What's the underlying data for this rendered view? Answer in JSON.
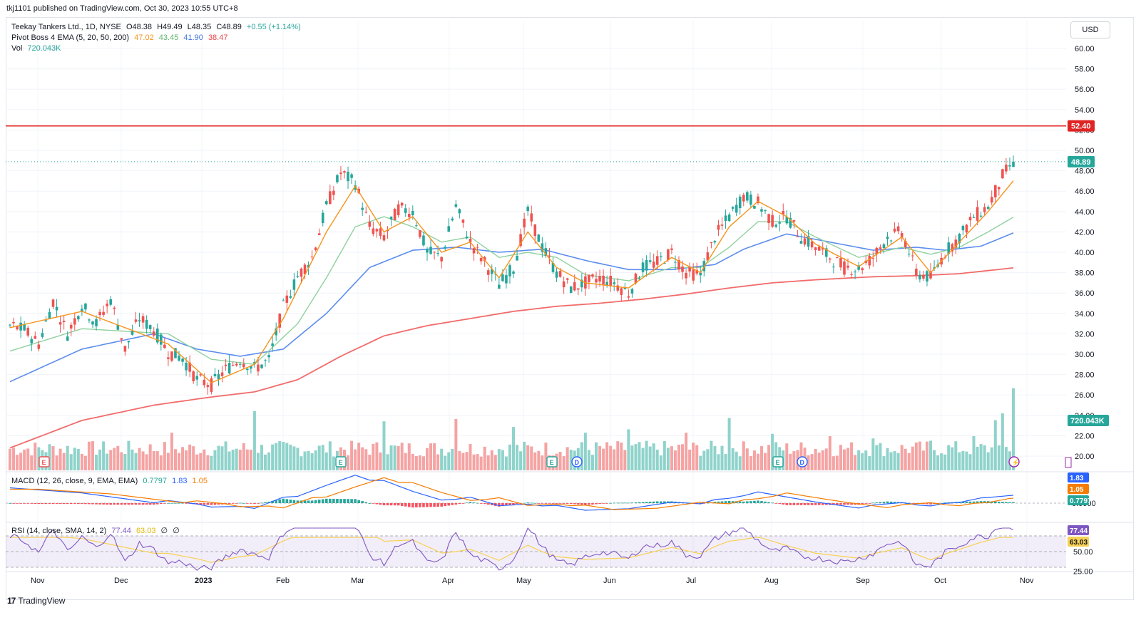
{
  "header": {
    "published": "tkj1101 published on TradingView.com, Oct 30, 2023 10:55 UTC+8"
  },
  "legend": {
    "symbol": "Teekay Tankers Ltd., 1D, NYSE",
    "open": "O48.38",
    "high": "H49.49",
    "low": "L48.35",
    "close": "C48.89",
    "change": "+0.55 (+1.14%)",
    "ema_label": "Pivot Boss 4 EMA (5, 20, 50, 200)",
    "ema5": "47.02",
    "ema20": "43.45",
    "ema50": "41.90",
    "ema200": "38.47",
    "vol_label": "Vol",
    "vol_value": "720.043K",
    "macd_label": "MACD (12, 26, close, 9, EMA, EMA)",
    "macd_hist": "0.7797",
    "macd_line": "1.83",
    "macd_signal": "1.05",
    "rsi_label": "RSI (14, close, SMA, 14, 2)",
    "rsi_value": "77.44",
    "rsi_ma": "63.03",
    "rsi_extra1": "∅",
    "rsi_extra2": "∅"
  },
  "toolbar": {
    "currency": "USD"
  },
  "footer": {
    "brand": "TradingView",
    "mark": "17"
  },
  "colors": {
    "up": "#26a69a",
    "down": "#ef5350",
    "up_vol": "#8fd3cb",
    "down_vol": "#f5a3a3",
    "ema5": "#f7931a",
    "ema20": "#8fd19e",
    "ema50": "#5b8def",
    "ema200": "#f26b6b",
    "resistance": "#e02424",
    "macd": "#2962ff",
    "signal": "#f57c00",
    "rsi": "#7e57c2",
    "rsi_ma": "#f7d154"
  },
  "badges": {
    "resistance": "52.40",
    "last_price": "48.89",
    "volume": "720.043K",
    "macd_line": "1.83",
    "macd_signal": "1.05",
    "macd_hist": "0.7797",
    "rsi": "77.44",
    "rsi_ma": "63.03"
  },
  "event_markers": [
    {
      "letter": "E",
      "kind": "earnings-red"
    },
    {
      "letter": "E",
      "kind": "earnings"
    },
    {
      "letter": "E",
      "kind": "earnings"
    },
    {
      "letter": "D",
      "kind": "dividend"
    },
    {
      "letter": "E",
      "kind": "earnings"
    },
    {
      "letter": "D",
      "kind": "dividend"
    },
    {
      "letter": "⚡",
      "kind": "news"
    }
  ],
  "chart_data": {
    "type": "candlestick",
    "title": "Teekay Tankers Ltd., 1D, NYSE",
    "currency": "USD",
    "price_axis": {
      "ticks": [
        "60.00",
        "58.00",
        "56.00",
        "54.00",
        "52.00",
        "50.00",
        "48.00",
        "46.00",
        "44.00",
        "42.00",
        "40.00",
        "38.00",
        "36.00",
        "34.00",
        "32.00",
        "30.00",
        "28.00",
        "26.00",
        "24.00",
        "22.00",
        "20.00"
      ],
      "range": [
        19,
        61
      ]
    },
    "time_axis": [
      "Nov",
      "Dec",
      "2023",
      "Feb",
      "Mar",
      "Apr",
      "May",
      "Jun",
      "Jul",
      "Aug",
      "Sep",
      "Oct",
      "Nov"
    ],
    "macd_axis": [
      "0.0000"
    ],
    "rsi_axis": [
      "50.00",
      "25.00"
    ],
    "rsi_levels": [
      70,
      50,
      30
    ],
    "resistance_level": 52.4,
    "last_ohlc": {
      "open": 48.38,
      "high": 49.49,
      "low": 48.35,
      "close": 48.89
    },
    "price_path": [
      [
        0,
        32.8
      ],
      [
        4,
        32.4
      ],
      [
        8,
        31.0
      ],
      [
        12,
        35.2
      ],
      [
        16,
        32.0
      ],
      [
        20,
        34.8
      ],
      [
        24,
        33.0
      ],
      [
        28,
        35.4
      ],
      [
        32,
        30.5
      ],
      [
        36,
        33.5
      ],
      [
        40,
        32.4
      ],
      [
        44,
        30.2
      ],
      [
        48,
        29.6
      ],
      [
        52,
        27.5
      ],
      [
        56,
        27.0
      ],
      [
        60,
        28.5
      ],
      [
        64,
        29.5
      ],
      [
        68,
        28.6
      ],
      [
        72,
        29.4
      ],
      [
        76,
        34.6
      ],
      [
        80,
        37.6
      ],
      [
        84,
        39.5
      ],
      [
        88,
        44.5
      ],
      [
        92,
        47.8
      ],
      [
        96,
        46.8
      ],
      [
        100,
        42.5
      ],
      [
        104,
        41.5
      ],
      [
        108,
        44.3
      ],
      [
        112,
        44.0
      ],
      [
        116,
        40.0
      ],
      [
        120,
        39.5
      ],
      [
        124,
        44.5
      ],
      [
        128,
        41.0
      ],
      [
        132,
        39.0
      ],
      [
        136,
        36.8
      ],
      [
        140,
        38.5
      ],
      [
        144,
        44.0
      ],
      [
        148,
        40.5
      ],
      [
        152,
        38.0
      ],
      [
        156,
        36.5
      ],
      [
        160,
        37.0
      ],
      [
        164,
        37.5
      ],
      [
        168,
        37.0
      ],
      [
        172,
        36.0
      ],
      [
        176,
        38.5
      ],
      [
        180,
        39.0
      ],
      [
        184,
        40.0
      ],
      [
        188,
        38.0
      ],
      [
        192,
        37.8
      ],
      [
        196,
        41.5
      ],
      [
        200,
        43.5
      ],
      [
        204,
        45.5
      ],
      [
        208,
        44.8
      ],
      [
        212,
        43.0
      ],
      [
        216,
        43.5
      ],
      [
        220,
        41.5
      ],
      [
        224,
        40.5
      ],
      [
        228,
        39.5
      ],
      [
        232,
        38.5
      ],
      [
        236,
        38.4
      ],
      [
        240,
        39.5
      ],
      [
        244,
        41.5
      ],
      [
        248,
        42.0
      ],
      [
        252,
        38.0
      ],
      [
        256,
        37.5
      ],
      [
        260,
        40.0
      ],
      [
        264,
        41.5
      ],
      [
        268,
        43.5
      ],
      [
        272,
        44.5
      ],
      [
        276,
        47.5
      ],
      [
        279,
        48.89
      ]
    ],
    "ema5_path": [
      [
        0,
        32.6
      ],
      [
        20,
        34.2
      ],
      [
        44,
        31.0
      ],
      [
        56,
        27.2
      ],
      [
        68,
        29.0
      ],
      [
        76,
        33.5
      ],
      [
        88,
        42.0
      ],
      [
        96,
        46.5
      ],
      [
        104,
        42.0
      ],
      [
        112,
        43.5
      ],
      [
        120,
        40.0
      ],
      [
        128,
        41.0
      ],
      [
        136,
        37.5
      ],
      [
        144,
        42.0
      ],
      [
        152,
        38.5
      ],
      [
        160,
        37.0
      ],
      [
        172,
        36.5
      ],
      [
        184,
        39.5
      ],
      [
        192,
        38.0
      ],
      [
        200,
        42.5
      ],
      [
        208,
        45.0
      ],
      [
        216,
        43.5
      ],
      [
        224,
        40.8
      ],
      [
        236,
        38.6
      ],
      [
        248,
        41.5
      ],
      [
        256,
        38.0
      ],
      [
        264,
        41.0
      ],
      [
        272,
        44.0
      ],
      [
        279,
        47.02
      ]
    ],
    "ema20_path": [
      [
        0,
        30.3
      ],
      [
        20,
        32.5
      ],
      [
        44,
        32.0
      ],
      [
        56,
        29.5
      ],
      [
        68,
        29.0
      ],
      [
        80,
        33.0
      ],
      [
        88,
        37.5
      ],
      [
        96,
        42.5
      ],
      [
        104,
        43.5
      ],
      [
        112,
        42.5
      ],
      [
        120,
        41.0
      ],
      [
        128,
        41.5
      ],
      [
        136,
        39.5
      ],
      [
        144,
        40.0
      ],
      [
        152,
        39.5
      ],
      [
        160,
        37.8
      ],
      [
        172,
        37.2
      ],
      [
        184,
        38.5
      ],
      [
        192,
        38.5
      ],
      [
        200,
        40.5
      ],
      [
        208,
        43.0
      ],
      [
        216,
        43.0
      ],
      [
        224,
        41.5
      ],
      [
        236,
        39.5
      ],
      [
        248,
        40.5
      ],
      [
        256,
        39.8
      ],
      [
        264,
        40.5
      ],
      [
        272,
        42.0
      ],
      [
        279,
        43.45
      ]
    ],
    "ema50_path": [
      [
        0,
        27.3
      ],
      [
        20,
        30.5
      ],
      [
        40,
        32.0
      ],
      [
        52,
        30.5
      ],
      [
        64,
        29.8
      ],
      [
        76,
        30.5
      ],
      [
        88,
        34.0
      ],
      [
        100,
        38.5
      ],
      [
        112,
        40.2
      ],
      [
        124,
        40.5
      ],
      [
        136,
        40.0
      ],
      [
        148,
        40.3
      ],
      [
        160,
        39.2
      ],
      [
        172,
        38.3
      ],
      [
        184,
        38.3
      ],
      [
        196,
        38.8
      ],
      [
        204,
        40.3
      ],
      [
        216,
        41.8
      ],
      [
        228,
        41.0
      ],
      [
        240,
        40.2
      ],
      [
        252,
        40.5
      ],
      [
        260,
        40.2
      ],
      [
        270,
        40.6
      ],
      [
        279,
        41.9
      ]
    ],
    "ema200_path": [
      [
        0,
        20.8
      ],
      [
        20,
        23.5
      ],
      [
        40,
        25.0
      ],
      [
        56,
        25.8
      ],
      [
        68,
        26.3
      ],
      [
        80,
        27.5
      ],
      [
        92,
        29.8
      ],
      [
        104,
        31.8
      ],
      [
        116,
        32.8
      ],
      [
        128,
        33.5
      ],
      [
        140,
        34.2
      ],
      [
        152,
        34.7
      ],
      [
        164,
        35.0
      ],
      [
        176,
        35.4
      ],
      [
        188,
        35.9
      ],
      [
        200,
        36.5
      ],
      [
        212,
        37.0
      ],
      [
        224,
        37.3
      ],
      [
        240,
        37.6
      ],
      [
        252,
        37.7
      ],
      [
        264,
        37.9
      ],
      [
        279,
        38.47
      ]
    ],
    "volume_spikes": [
      [
        68,
        520
      ],
      [
        104,
        430
      ],
      [
        124,
        450
      ],
      [
        140,
        380
      ],
      [
        160,
        390
      ],
      [
        172,
        360
      ],
      [
        188,
        330
      ],
      [
        200,
        460
      ],
      [
        212,
        320
      ],
      [
        228,
        300
      ],
      [
        240,
        280
      ],
      [
        256,
        260
      ],
      [
        268,
        300
      ],
      [
        274,
        440
      ],
      [
        276,
        500
      ],
      [
        279,
        720
      ]
    ],
    "macd": {
      "line_last": 1.83,
      "signal_last": 1.05,
      "hist_last": 0.7797
    },
    "rsi": {
      "last": 77.44,
      "ma_last": 63.03
    }
  }
}
